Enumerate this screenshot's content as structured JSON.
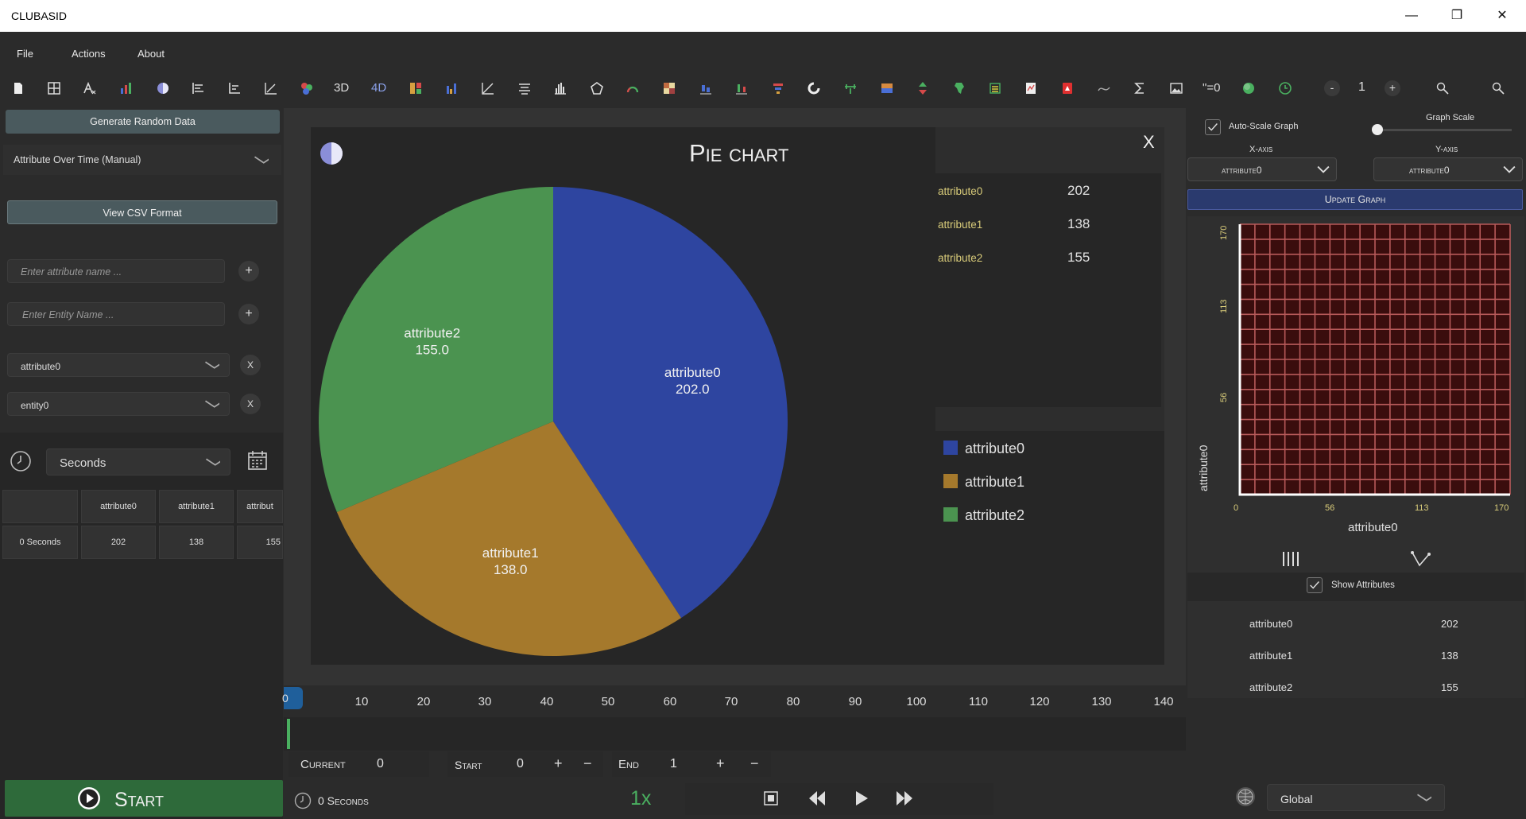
{
  "app": {
    "title": "CLUBASID"
  },
  "window_controls": {
    "minimize": "—",
    "maximize": "❐",
    "close": "✕"
  },
  "menu": [
    "File",
    "Actions",
    "About"
  ],
  "toolbar": {
    "label_3d": "3D",
    "label_4d": "4D",
    "formula_label": "\"=0",
    "zoom_value": "1",
    "minus": "-",
    "plus": "+"
  },
  "left": {
    "generate_button": "Generate Random Data",
    "mode_select": "Attribute Over Time (Manual)",
    "csv_button": "View CSV Format",
    "attr_input_placeholder": "Enter attribute name ...",
    "entity_input_placeholder": "Enter Entity Name ...",
    "plus": "+",
    "attr_select": "attribute0",
    "entity_select": "entity0",
    "remove": "X",
    "time_unit": "Seconds",
    "table": {
      "headers": [
        "",
        "attribute0",
        "attribute1",
        "attribut"
      ],
      "rows": [
        [
          "0 Seconds",
          "202",
          "138",
          "155"
        ]
      ]
    },
    "start_button": "Start"
  },
  "chart_window": {
    "title": "Pie chart",
    "close": "X",
    "values_list": [
      {
        "name": "attribute0",
        "value": "202"
      },
      {
        "name": "attribute1",
        "value": "138"
      },
      {
        "name": "attribute2",
        "value": "155"
      }
    ],
    "slice_labels": [
      {
        "name": "attribute0",
        "value": "202.0"
      },
      {
        "name": "attribute1",
        "value": "138.0"
      },
      {
        "name": "attribute2",
        "value": "155.0"
      }
    ],
    "legend": [
      "attribute0",
      "attribute1",
      "attribute2"
    ]
  },
  "chart_data": {
    "type": "pie",
    "title": "Pie chart",
    "categories": [
      "attribute0",
      "attribute1",
      "attribute2"
    ],
    "values": [
      202,
      138,
      155
    ],
    "colors": [
      "#2e45a0",
      "#a5792c",
      "#4b9350"
    ],
    "legend_position": "right"
  },
  "timeline": {
    "current_marker": "0",
    "ticks": [
      "10",
      "20",
      "30",
      "40",
      "50",
      "60",
      "70",
      "80",
      "90",
      "100",
      "110",
      "120",
      "130",
      "140"
    ]
  },
  "controls": {
    "current_label": "Current",
    "current_value": "0",
    "start_label": "Start",
    "start_value": "0",
    "end_label": "End",
    "end_value": "1",
    "plus": "+",
    "minus": "−",
    "elapsed": "0 Seconds",
    "speed": "1x"
  },
  "right": {
    "autoscale_label": "Auto-Scale Graph",
    "graph_scale_label": "Graph Scale",
    "graph_scale_value": 0,
    "x_axis_label": "X-axis",
    "y_axis_label": "Y-axis",
    "x_axis_select": "attribute0",
    "y_axis_select": "attribute0",
    "update_button": "Update Graph",
    "mini_graph": {
      "y_ticks": [
        "170",
        "113",
        "56"
      ],
      "x_ticks": [
        "0",
        "56",
        "113",
        "170"
      ],
      "xlabel": "attribute0",
      "ylabel": "attribute0"
    },
    "show_attributes_label": "Show Attributes",
    "attributes": [
      {
        "name": "attribute0",
        "value": "202"
      },
      {
        "name": "attribute1",
        "value": "138"
      },
      {
        "name": "attribute2",
        "value": "155"
      }
    ],
    "scope_select": "Global"
  },
  "colors": {
    "accent_green": "#2e6a3a",
    "update_button": "#2a3a6e",
    "mini_grid_bg": "#3a0d0d",
    "mini_grid_line": "#b85a5a",
    "timeline_marker": "#1f5f9b",
    "yellow_text": "#d9cc7a"
  }
}
